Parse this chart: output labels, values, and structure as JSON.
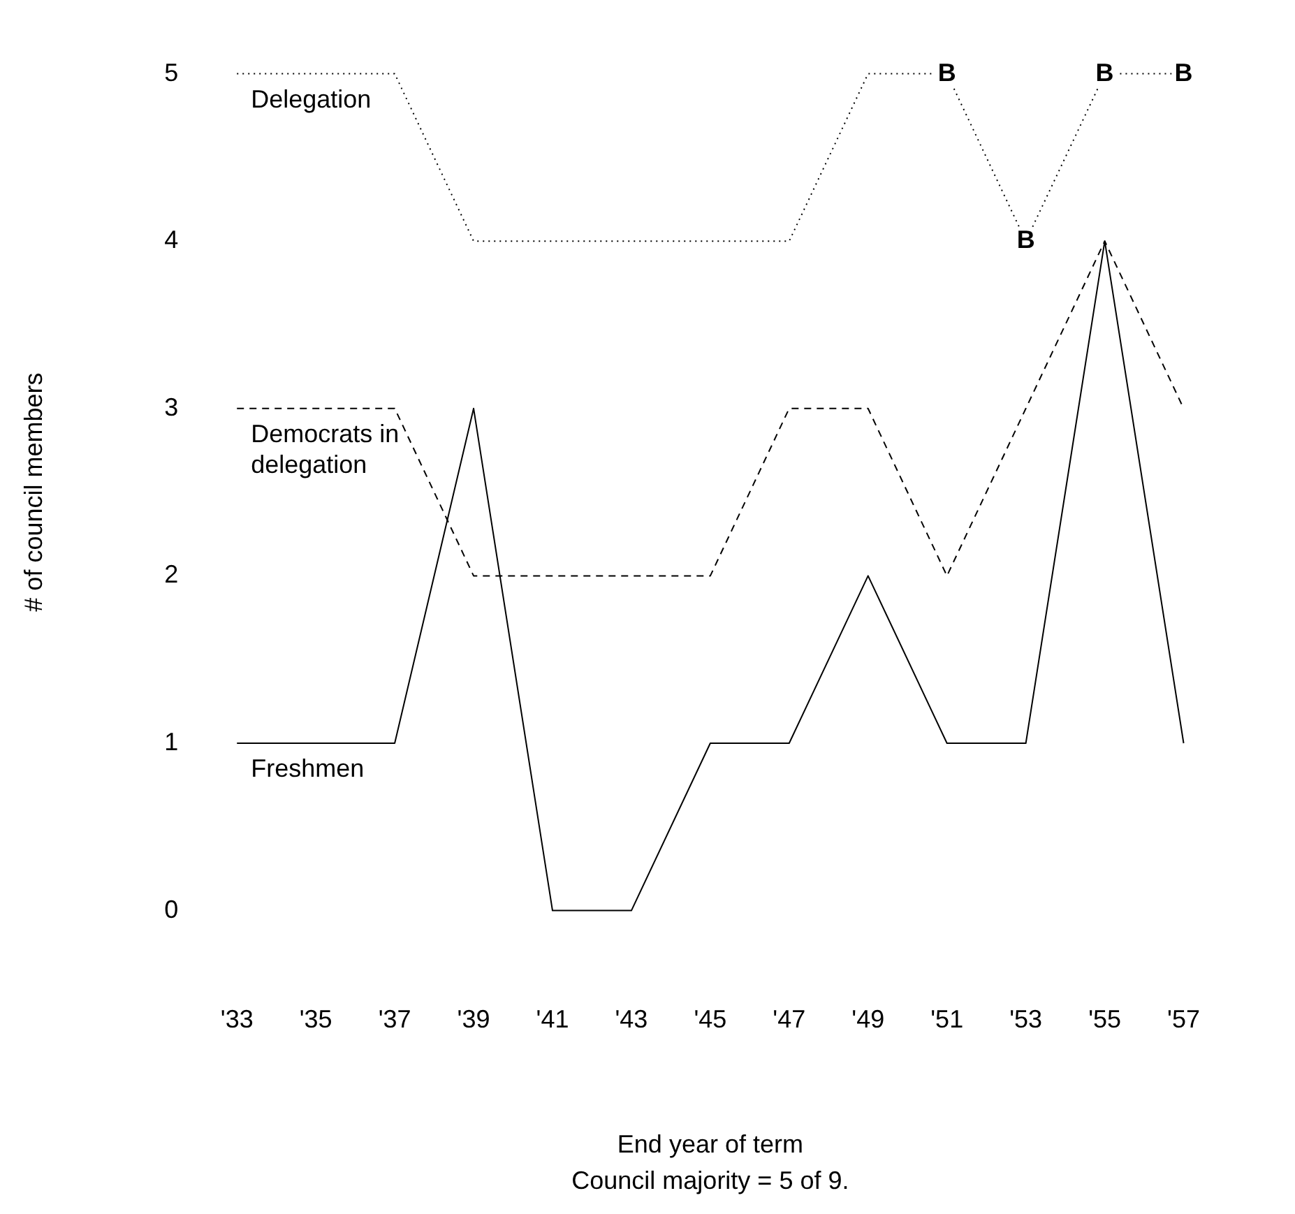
{
  "chart_data": {
    "type": "line",
    "xlabel": "End year of term",
    "ylabel": "# of council members",
    "categories": [
      "'33",
      "'35",
      "'37",
      "'39",
      "'41",
      "'43",
      "'45",
      "'47",
      "'49",
      "'51",
      "'53",
      "'55",
      "'57"
    ],
    "ylim": [
      0,
      5
    ],
    "yticks": [
      0,
      1,
      2,
      3,
      4,
      5
    ],
    "grid": false,
    "legend": false,
    "marker": "none",
    "series": [
      {
        "name": "Delegation",
        "color": "#000000",
        "line_style": "dotted",
        "values": [
          5,
          5,
          5,
          4,
          4,
          4,
          4,
          4,
          5,
          5,
          4,
          5,
          5
        ]
      },
      {
        "name": "Democrats in delegation",
        "color": "#000000",
        "line_style": "dashed",
        "values": [
          3,
          3,
          3,
          2,
          2,
          2,
          2,
          3,
          3,
          2,
          3,
          4,
          3
        ]
      },
      {
        "name": "Freshmen",
        "color": "#000000",
        "line_style": "solid",
        "values": [
          1,
          1,
          1,
          3,
          0,
          0,
          1,
          1,
          2,
          1,
          1,
          4,
          1
        ]
      }
    ],
    "annotations": [
      {
        "text": "B",
        "x": "'51",
        "y": 5
      },
      {
        "text": "B",
        "x": "'53",
        "y": 4
      },
      {
        "text": "B",
        "x": "'55",
        "y": 5
      },
      {
        "text": "B",
        "x": "'57",
        "y": 5
      },
      "Council majority = 5 of 9."
    ]
  }
}
